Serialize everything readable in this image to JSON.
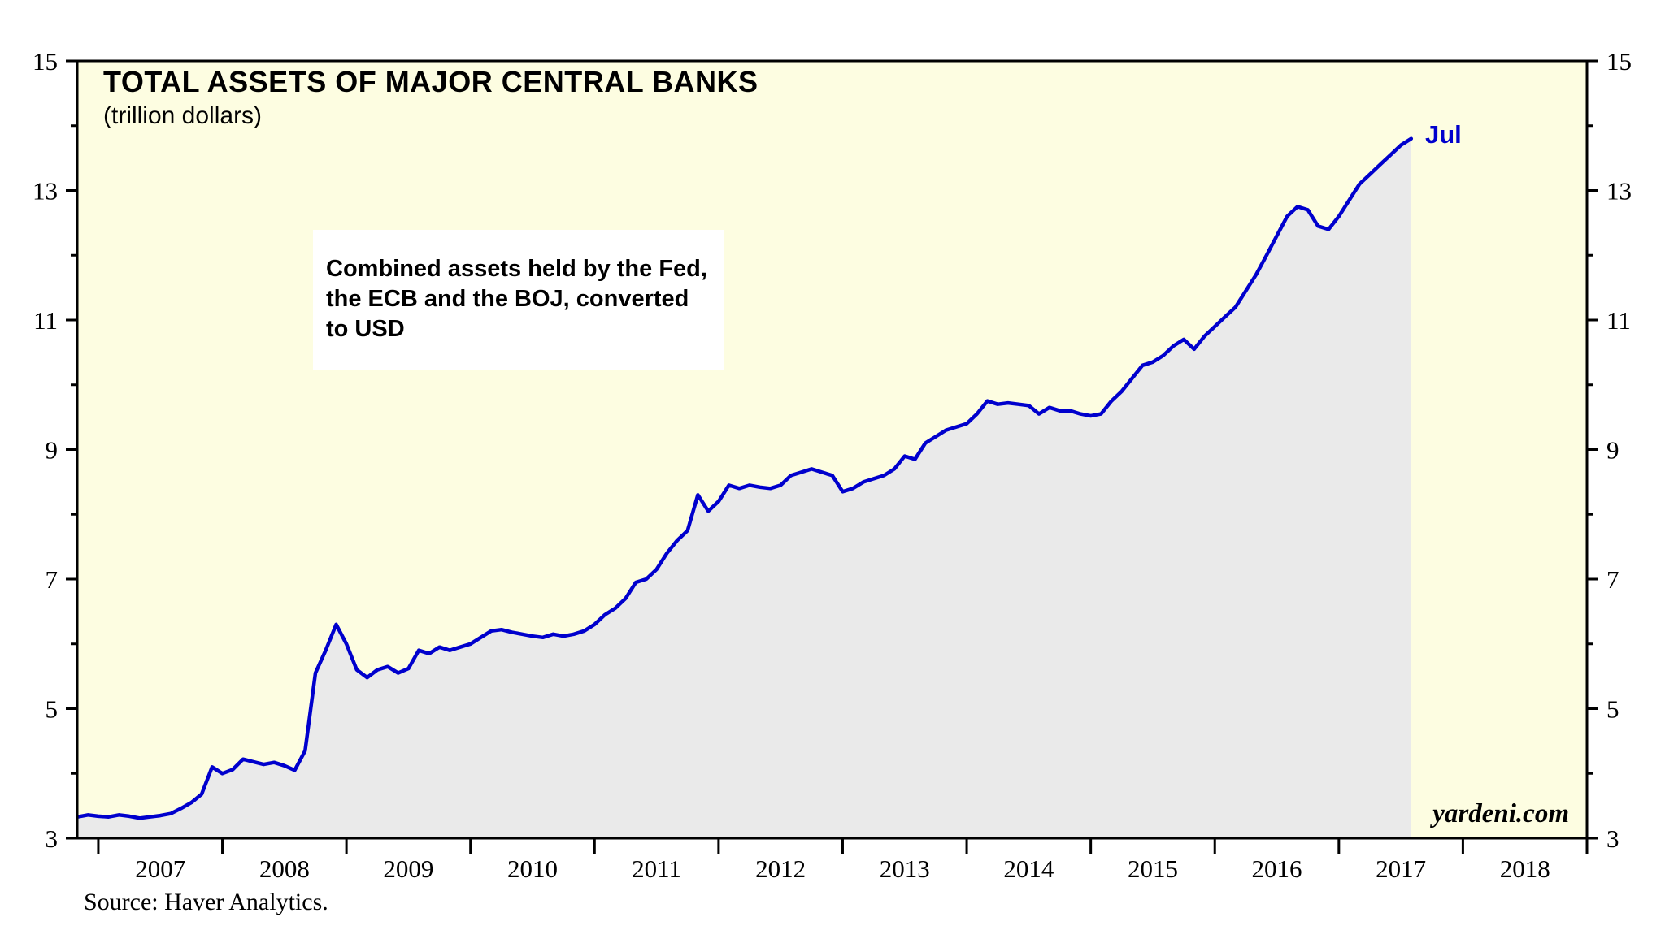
{
  "title": "TOTAL ASSETS OF MAJOR CENTRAL BANKS",
  "subtitle": "(trillion dollars)",
  "annotation": {
    "lines": [
      "Combined assets held by the Fed,",
      "the ECB and the BOJ, converted",
      "to USD"
    ]
  },
  "end_label": "Jul",
  "watermark": "yardeni.com",
  "source": "Source: Haver Analytics.",
  "colors": {
    "line": "#0000CD",
    "plot_background": "#FDFDE1",
    "area": "#EAEAEA",
    "frame": "#000000",
    "tick": "#000000",
    "annotation_background": "#FFFFFF",
    "end_label": "#0000CD"
  },
  "chart_data": {
    "type": "line",
    "title": "TOTAL ASSETS OF MAJOR CENTRAL BANKS",
    "subtitle": "(trillion dollars)",
    "xlabel": "",
    "ylabel": "trillion dollars",
    "x_range": [
      2006.83,
      2019.0
    ],
    "y_range": [
      3,
      15
    ],
    "grid": "off",
    "legend": "none",
    "area_fill": true,
    "last_point_label": "Jul",
    "y_ticks": [
      3,
      4,
      5,
      6,
      7,
      8,
      9,
      10,
      11,
      12,
      13,
      14,
      15
    ],
    "y_tick_labels": [
      [
        3,
        "3"
      ],
      [
        5,
        "5"
      ],
      [
        7,
        "7"
      ],
      [
        9,
        "9"
      ],
      [
        11,
        "11"
      ],
      [
        13,
        "13"
      ],
      [
        15,
        "15"
      ]
    ],
    "x_ticks": [
      2007,
      2008,
      2009,
      2010,
      2011,
      2012,
      2013,
      2014,
      2015,
      2016,
      2017,
      2018,
      2019
    ],
    "x_tick_labels": [
      [
        2007.5,
        "2007"
      ],
      [
        2008.5,
        "2008"
      ],
      [
        2009.5,
        "2009"
      ],
      [
        2010.5,
        "2010"
      ],
      [
        2011.5,
        "2011"
      ],
      [
        2012.5,
        "2012"
      ],
      [
        2013.5,
        "2013"
      ],
      [
        2014.5,
        "2014"
      ],
      [
        2015.5,
        "2015"
      ],
      [
        2016.5,
        "2016"
      ],
      [
        2017.5,
        "2017"
      ],
      [
        2018.5,
        "2018"
      ]
    ],
    "series": [
      {
        "name": "Combined Fed + ECB + BOJ total assets (USD trillions)",
        "points": [
          [
            2006.833,
            3.33
          ],
          [
            2006.917,
            3.36
          ],
          [
            2007.0,
            3.34
          ],
          [
            2007.083,
            3.33
          ],
          [
            2007.167,
            3.36
          ],
          [
            2007.25,
            3.34
          ],
          [
            2007.333,
            3.31
          ],
          [
            2007.417,
            3.33
          ],
          [
            2007.5,
            3.35
          ],
          [
            2007.583,
            3.38
          ],
          [
            2007.667,
            3.46
          ],
          [
            2007.75,
            3.55
          ],
          [
            2007.833,
            3.68
          ],
          [
            2007.917,
            4.1
          ],
          [
            2008.0,
            4.0
          ],
          [
            2008.083,
            4.06
          ],
          [
            2008.167,
            4.22
          ],
          [
            2008.25,
            4.18
          ],
          [
            2008.333,
            4.14
          ],
          [
            2008.417,
            4.17
          ],
          [
            2008.5,
            4.12
          ],
          [
            2008.583,
            4.05
          ],
          [
            2008.667,
            4.35
          ],
          [
            2008.75,
            5.55
          ],
          [
            2008.833,
            5.9
          ],
          [
            2008.917,
            6.3
          ],
          [
            2009.0,
            6.0
          ],
          [
            2009.083,
            5.6
          ],
          [
            2009.167,
            5.48
          ],
          [
            2009.25,
            5.6
          ],
          [
            2009.333,
            5.65
          ],
          [
            2009.417,
            5.55
          ],
          [
            2009.5,
            5.62
          ],
          [
            2009.583,
            5.9
          ],
          [
            2009.667,
            5.85
          ],
          [
            2009.75,
            5.95
          ],
          [
            2009.833,
            5.9
          ],
          [
            2009.917,
            5.95
          ],
          [
            2010.0,
            6.0
          ],
          [
            2010.083,
            6.1
          ],
          [
            2010.167,
            6.2
          ],
          [
            2010.25,
            6.22
          ],
          [
            2010.333,
            6.18
          ],
          [
            2010.417,
            6.15
          ],
          [
            2010.5,
            6.12
          ],
          [
            2010.583,
            6.1
          ],
          [
            2010.667,
            6.15
          ],
          [
            2010.75,
            6.12
          ],
          [
            2010.833,
            6.15
          ],
          [
            2010.917,
            6.2
          ],
          [
            2011.0,
            6.3
          ],
          [
            2011.083,
            6.45
          ],
          [
            2011.167,
            6.55
          ],
          [
            2011.25,
            6.7
          ],
          [
            2011.333,
            6.95
          ],
          [
            2011.417,
            7.0
          ],
          [
            2011.5,
            7.15
          ],
          [
            2011.583,
            7.4
          ],
          [
            2011.667,
            7.6
          ],
          [
            2011.75,
            7.75
          ],
          [
            2011.833,
            8.3
          ],
          [
            2011.917,
            8.05
          ],
          [
            2012.0,
            8.2
          ],
          [
            2012.083,
            8.45
          ],
          [
            2012.167,
            8.4
          ],
          [
            2012.25,
            8.45
          ],
          [
            2012.333,
            8.42
          ],
          [
            2012.417,
            8.4
          ],
          [
            2012.5,
            8.45
          ],
          [
            2012.583,
            8.6
          ],
          [
            2012.667,
            8.65
          ],
          [
            2012.75,
            8.7
          ],
          [
            2012.833,
            8.65
          ],
          [
            2012.917,
            8.6
          ],
          [
            2013.0,
            8.35
          ],
          [
            2013.083,
            8.4
          ],
          [
            2013.167,
            8.5
          ],
          [
            2013.25,
            8.55
          ],
          [
            2013.333,
            8.6
          ],
          [
            2013.417,
            8.7
          ],
          [
            2013.5,
            8.9
          ],
          [
            2013.583,
            8.85
          ],
          [
            2013.667,
            9.1
          ],
          [
            2013.75,
            9.2
          ],
          [
            2013.833,
            9.3
          ],
          [
            2013.917,
            9.35
          ],
          [
            2014.0,
            9.4
          ],
          [
            2014.083,
            9.55
          ],
          [
            2014.167,
            9.75
          ],
          [
            2014.25,
            9.7
          ],
          [
            2014.333,
            9.72
          ],
          [
            2014.417,
            9.7
          ],
          [
            2014.5,
            9.68
          ],
          [
            2014.583,
            9.55
          ],
          [
            2014.667,
            9.65
          ],
          [
            2014.75,
            9.6
          ],
          [
            2014.833,
            9.6
          ],
          [
            2014.917,
            9.55
          ],
          [
            2015.0,
            9.52
          ],
          [
            2015.083,
            9.55
          ],
          [
            2015.167,
            9.75
          ],
          [
            2015.25,
            9.9
          ],
          [
            2015.333,
            10.1
          ],
          [
            2015.417,
            10.3
          ],
          [
            2015.5,
            10.35
          ],
          [
            2015.583,
            10.45
          ],
          [
            2015.667,
            10.6
          ],
          [
            2015.75,
            10.7
          ],
          [
            2015.833,
            10.55
          ],
          [
            2015.917,
            10.75
          ],
          [
            2016.0,
            10.9
          ],
          [
            2016.083,
            11.05
          ],
          [
            2016.167,
            11.2
          ],
          [
            2016.25,
            11.45
          ],
          [
            2016.333,
            11.7
          ],
          [
            2016.417,
            12.0
          ],
          [
            2016.5,
            12.3
          ],
          [
            2016.583,
            12.6
          ],
          [
            2016.667,
            12.75
          ],
          [
            2016.75,
            12.7
          ],
          [
            2016.833,
            12.45
          ],
          [
            2016.917,
            12.4
          ],
          [
            2017.0,
            12.6
          ],
          [
            2017.083,
            12.85
          ],
          [
            2017.167,
            13.1
          ],
          [
            2017.25,
            13.25
          ],
          [
            2017.333,
            13.4
          ],
          [
            2017.417,
            13.55
          ],
          [
            2017.5,
            13.7
          ],
          [
            2017.583,
            13.8
          ]
        ]
      }
    ]
  }
}
